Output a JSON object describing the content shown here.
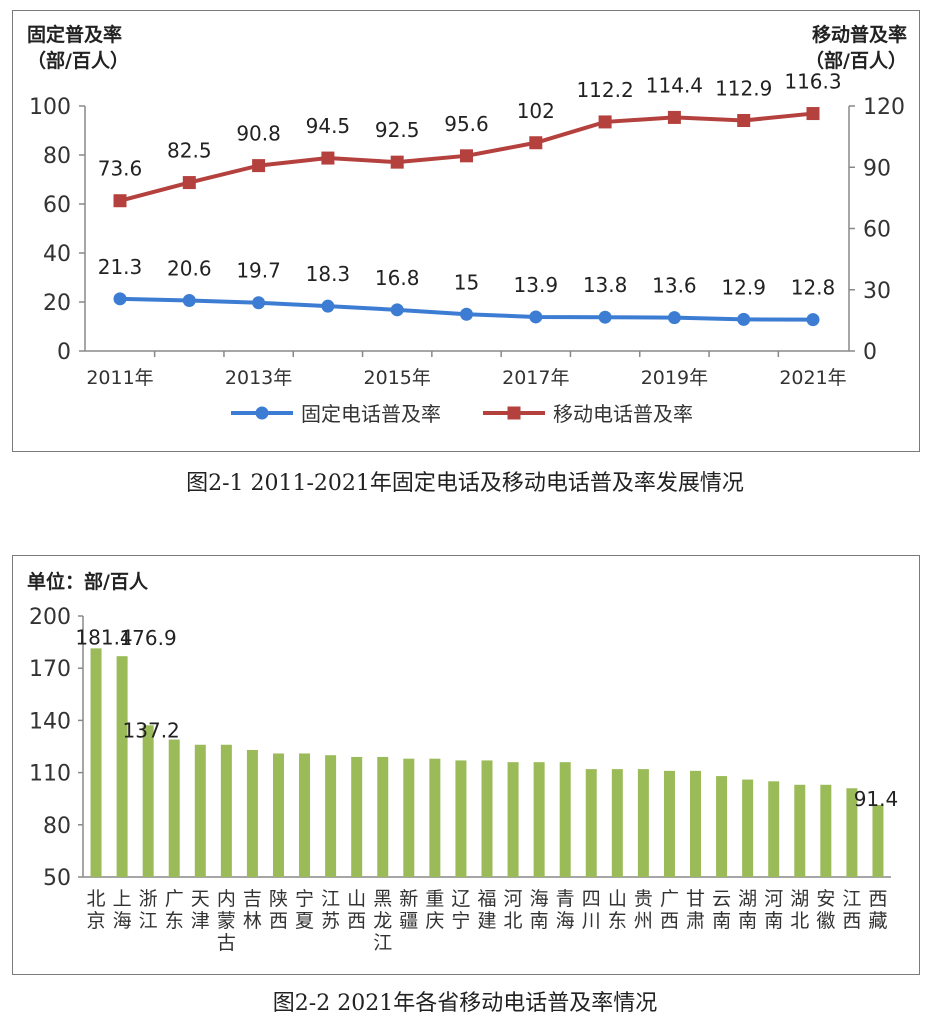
{
  "chart_data": [
    {
      "type": "line",
      "caption": "图2-1  2011-2021年固定电话及移动电话普及率发展情况",
      "left_axis_title": [
        "固定普及率",
        "（部/百人）"
      ],
      "right_axis_title": [
        "移动普及率",
        "（部/百人）"
      ],
      "x": [
        2011,
        2012,
        2013,
        2014,
        2015,
        2016,
        2017,
        2018,
        2019,
        2020,
        2021
      ],
      "x_tick_labels": [
        "2011年",
        "2013年",
        "2015年",
        "2017年",
        "2019年",
        "2021年"
      ],
      "x_tick_values": [
        2011,
        2013,
        2015,
        2017,
        2019,
        2021
      ],
      "ylim_left": [
        0,
        100
      ],
      "yticks_left": [
        0,
        20,
        40,
        60,
        80,
        100
      ],
      "ylim_right": [
        0,
        120
      ],
      "yticks_right": [
        0,
        30,
        60,
        90,
        120
      ],
      "series": [
        {
          "name": "固定电话普及率",
          "axis": "left",
          "color": "#3c7dd3",
          "marker": "circle",
          "values": [
            21.3,
            20.6,
            19.7,
            18.3,
            16.8,
            15,
            13.9,
            13.8,
            13.6,
            12.9,
            12.8
          ],
          "labels": [
            "21.3",
            "20.6",
            "19.7",
            "18.3",
            "16.8",
            "15",
            "13.9",
            "13.8",
            "13.6",
            "12.9",
            "12.8"
          ]
        },
        {
          "name": "移动电话普及率",
          "axis": "right",
          "color": "#b5413e",
          "marker": "square",
          "values": [
            73.6,
            82.5,
            90.8,
            94.5,
            92.5,
            95.6,
            102,
            112.2,
            114.4,
            112.9,
            116.3
          ],
          "labels": [
            "73.6",
            "82.5",
            "90.8",
            "94.5",
            "92.5",
            "95.6",
            "102",
            "112.2",
            "114.4",
            "112.9",
            "116.3"
          ]
        }
      ],
      "legend": "bottom",
      "grid": false
    },
    {
      "type": "bar",
      "caption": "图2-2  2021年各省移动电话普及率情况",
      "unit_label": "单位：部/百人",
      "categories": [
        "北京",
        "上海",
        "浙江",
        "广东",
        "天津",
        "内蒙古",
        "吉林",
        "陕西",
        "宁夏",
        "江苏",
        "山西",
        "黑龙江",
        "新疆",
        "重庆",
        "辽宁",
        "福建",
        "河北",
        "海南",
        "青海",
        "四川",
        "山东",
        "贵州",
        "广西",
        "甘肃",
        "云南",
        "湖南",
        "河南",
        "湖北",
        "安徽",
        "江西",
        "西藏"
      ],
      "values": [
        181.4,
        176.9,
        137.2,
        129,
        126,
        126,
        123,
        121,
        121,
        120,
        119,
        119,
        118,
        118,
        117,
        117,
        116,
        116,
        116,
        112,
        112,
        112,
        111,
        111,
        108,
        106,
        105,
        103,
        103,
        101,
        91.4
      ],
      "data_labels": [
        "181.4",
        "176.9",
        "137.2",
        "",
        "",
        "",
        "",
        "",
        "",
        "",
        "",
        "",
        "",
        "",
        "",
        "",
        "",
        "",
        "",
        "",
        "",
        "",
        "",
        "",
        "",
        "",
        "",
        "",
        "",
        "",
        "91.4"
      ],
      "ylim": [
        50,
        200
      ],
      "yticks": [
        50,
        80,
        110,
        140,
        170,
        200
      ],
      "bar_color": "#9bbb59",
      "grid": false
    }
  ]
}
